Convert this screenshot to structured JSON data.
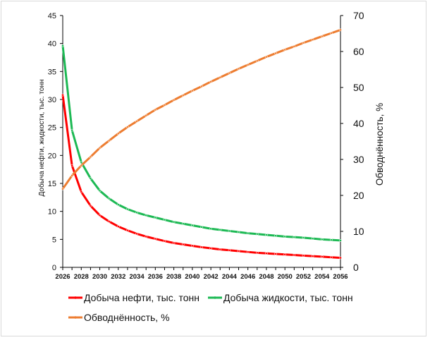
{
  "chart_data": {
    "type": "line",
    "x": [
      2026,
      2027,
      2028,
      2029,
      2030,
      2031,
      2032,
      2033,
      2034,
      2035,
      2036,
      2037,
      2038,
      2039,
      2040,
      2041,
      2042,
      2043,
      2044,
      2045,
      2046,
      2047,
      2048,
      2049,
      2050,
      2051,
      2052,
      2053,
      2054,
      2055,
      2056
    ],
    "x_tick_labels": [
      "2026",
      "2028",
      "2030",
      "2032",
      "2034",
      "2036",
      "2038",
      "2040",
      "2042",
      "2044",
      "2046",
      "2048",
      "2050",
      "2052",
      "2054",
      "2056"
    ],
    "ylabel": "Добыча нефти, жидкости, тыс. тонн",
    "ylim": [
      0,
      45
    ],
    "y_ticks": [
      0,
      5,
      10,
      15,
      20,
      25,
      30,
      35,
      40,
      45
    ],
    "y2label": "Обводнённость, %",
    "y2lim": [
      0,
      70
    ],
    "y2_ticks": [
      0,
      10,
      20,
      30,
      40,
      50,
      60,
      70
    ],
    "grid": false,
    "legend_position": "bottom",
    "series": [
      {
        "name": "Добыча нефти, тыс. тонн",
        "axis": "left",
        "color": "#ff0000",
        "values": [
          30.8,
          18.2,
          13.5,
          11.0,
          9.3,
          8.2,
          7.3,
          6.6,
          6.0,
          5.5,
          5.1,
          4.7,
          4.35,
          4.1,
          3.85,
          3.6,
          3.4,
          3.2,
          3.05,
          2.9,
          2.75,
          2.6,
          2.5,
          2.4,
          2.3,
          2.2,
          2.1,
          2.0,
          1.9,
          1.8,
          1.7
        ]
      },
      {
        "name": "Добыча жидкости, тыс. тонн",
        "axis": "left",
        "color": "#1db954",
        "values": [
          39.6,
          24.5,
          18.8,
          15.9,
          13.7,
          12.3,
          11.2,
          10.4,
          9.8,
          9.3,
          8.9,
          8.5,
          8.1,
          7.8,
          7.5,
          7.2,
          6.9,
          6.7,
          6.5,
          6.3,
          6.1,
          5.95,
          5.8,
          5.65,
          5.5,
          5.4,
          5.3,
          5.15,
          5.0,
          4.9,
          4.8
        ]
      },
      {
        "name": "Обводнённость, %",
        "axis": "right",
        "color": "#ed7d31",
        "values": [
          21.8,
          25.5,
          28.3,
          30.7,
          33.2,
          35.2,
          37.2,
          39.0,
          40.6,
          42.2,
          43.8,
          45.1,
          46.5,
          47.8,
          49.1,
          50.3,
          51.6,
          52.8,
          54.0,
          55.2,
          56.3,
          57.4,
          58.5,
          59.5,
          60.5,
          61.4,
          62.4,
          63.3,
          64.2,
          65.1,
          66.0
        ]
      }
    ]
  }
}
